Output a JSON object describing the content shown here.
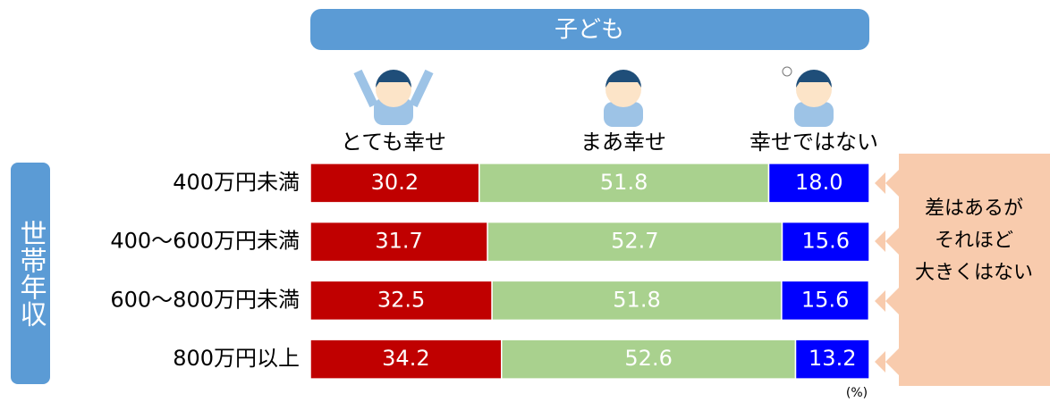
{
  "chart_data": {
    "type": "bar",
    "stacked": true,
    "horizontal": true,
    "title": "子ども",
    "y_label": "世帯年収",
    "unit": "(%)",
    "annotation": [
      "差はあるが",
      "それほど",
      "大きくはない"
    ],
    "categories": [
      "400万円未満",
      "400〜600万円未満",
      "600〜800万円未満",
      "800万円以上"
    ],
    "xlim": [
      0,
      100
    ],
    "series": [
      {
        "name": "とても幸せ",
        "color": "#c00000",
        "values": [
          30.2,
          31.7,
          32.5,
          34.2
        ],
        "value_labels": [
          "30.2",
          "31.7",
          "32.5",
          "34.2"
        ]
      },
      {
        "name": "まあ幸せ",
        "color": "#a9d18e",
        "values": [
          51.8,
          52.7,
          51.8,
          52.6
        ],
        "value_labels": [
          "51.8",
          "52.7",
          "51.8",
          "52.6"
        ]
      },
      {
        "name": "幸せではない",
        "color": "#0000ff",
        "values": [
          18.0,
          15.6,
          15.6,
          13.2
        ],
        "value_labels": [
          "18.0",
          "15.6",
          "15.6",
          "13.2"
        ]
      }
    ]
  }
}
